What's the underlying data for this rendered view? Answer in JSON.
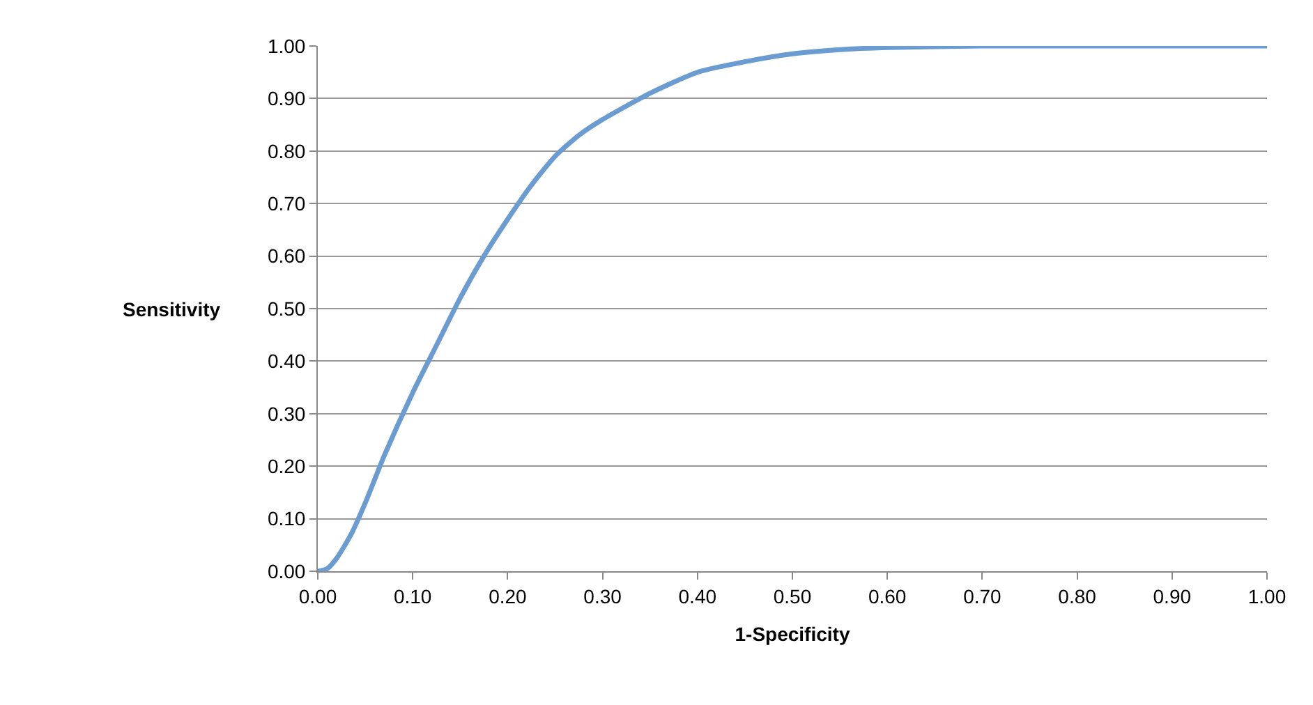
{
  "chart_data": {
    "type": "line",
    "xlabel": "1-Specificity",
    "ylabel": "Sensitivity",
    "x": [
      0,
      0.01,
      0.02,
      0.035,
      0.05,
      0.07,
      0.1,
      0.125,
      0.15,
      0.175,
      0.2,
      0.225,
      0.25,
      0.275,
      0.3,
      0.35,
      0.4,
      0.45,
      0.5,
      0.55,
      0.6,
      0.7,
      0.8,
      0.9,
      1.0
    ],
    "series": [
      {
        "color": "#6a9bd1",
        "values": [
          0,
          0.005,
          0.025,
          0.07,
          0.13,
          0.22,
          0.34,
          0.43,
          0.52,
          0.6,
          0.67,
          0.735,
          0.79,
          0.83,
          0.86,
          0.91,
          0.95,
          0.97,
          0.985,
          0.993,
          0.997,
          1.0,
          1.0,
          1.0,
          1.0
        ]
      }
    ],
    "xlim": [
      0,
      1
    ],
    "ylim": [
      0,
      1
    ],
    "xticks": [
      {
        "value": 0,
        "label": "0.00"
      },
      {
        "value": 0.1,
        "label": "0.10"
      },
      {
        "value": 0.2,
        "label": "0.20"
      },
      {
        "value": 0.3,
        "label": "0.30"
      },
      {
        "value": 0.4,
        "label": "0.40"
      },
      {
        "value": 0.5,
        "label": "0.50"
      },
      {
        "value": 0.6,
        "label": "0.60"
      },
      {
        "value": 0.7,
        "label": "0.70"
      },
      {
        "value": 0.8,
        "label": "0.80"
      },
      {
        "value": 0.9,
        "label": "0.90"
      },
      {
        "value": 1,
        "label": "1.00"
      }
    ],
    "yticks": [
      {
        "value": 0,
        "label": "0.00"
      },
      {
        "value": 0.1,
        "label": "0.10"
      },
      {
        "value": 0.2,
        "label": "0.20"
      },
      {
        "value": 0.3,
        "label": "0.30"
      },
      {
        "value": 0.4,
        "label": "0.40"
      },
      {
        "value": 0.5,
        "label": "0.50"
      },
      {
        "value": 0.6,
        "label": "0.60"
      },
      {
        "value": 0.7,
        "label": "0.70"
      },
      {
        "value": 0.8,
        "label": "0.80"
      },
      {
        "value": 0.9,
        "label": "0.90"
      },
      {
        "value": 1,
        "label": "1.00"
      }
    ],
    "grid": "y",
    "marker": "none",
    "line_style": "solid"
  }
}
